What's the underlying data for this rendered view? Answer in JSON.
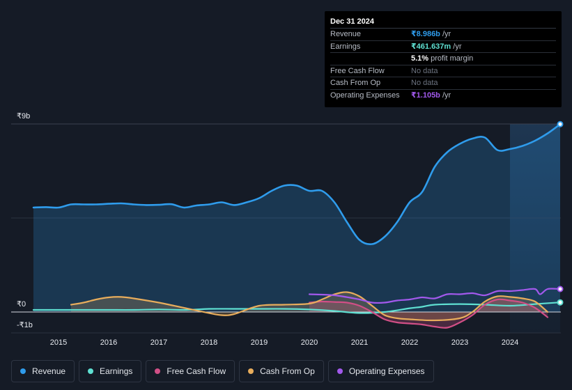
{
  "tooltip": {
    "date": "Dec 31 2024",
    "rows": [
      {
        "label": "Revenue",
        "value": "₹8.986b",
        "unit": " /yr",
        "color": "#2f9cec"
      },
      {
        "label": "Earnings",
        "value": "₹461.637m",
        "unit": " /yr",
        "color": "#5fe0d2"
      },
      {
        "label": "",
        "value": "5.1%",
        "unit": " profit margin",
        "color": "#ffffff"
      },
      {
        "label": "Free Cash Flow",
        "value": "No data",
        "unit": "",
        "color": "#6c7380"
      },
      {
        "label": "Cash From Op",
        "value": "No data",
        "unit": "",
        "color": "#6c7380"
      },
      {
        "label": "Operating Expenses",
        "value": "₹1.105b",
        "unit": " /yr",
        "color": "#a259ec"
      }
    ]
  },
  "colors": {
    "background": "#151b26",
    "revenue": "#2f9cec",
    "earnings": "#5fe0d2",
    "free_cash_flow": "#d14f86",
    "cash_from_op": "#e8ad5c",
    "operating_expenses": "#a259ec",
    "grid": "#3a4150",
    "highlight": "#1b2a3d"
  },
  "chart_data": {
    "type": "line",
    "title": "",
    "y_labels": {
      "top": "₹9b",
      "zero": "₹0",
      "bottom": "-₹1b"
    },
    "ylim": [
      -1,
      9
    ],
    "xlim": [
      2014.5,
      2025.0
    ],
    "x_ticks": [
      "2015",
      "2016",
      "2017",
      "2018",
      "2019",
      "2020",
      "2021",
      "2022",
      "2023",
      "2024"
    ],
    "x_tick_values": [
      2015,
      2016,
      2017,
      2018,
      2019,
      2020,
      2021,
      2022,
      2023,
      2024
    ],
    "forecast_start": 2024.0,
    "series": [
      {
        "name": "Revenue",
        "key": "revenue",
        "fill": true,
        "points": [
          [
            2014.5,
            5.0
          ],
          [
            2014.75,
            5.02
          ],
          [
            2015.0,
            5.0
          ],
          [
            2015.25,
            5.15
          ],
          [
            2015.5,
            5.15
          ],
          [
            2015.75,
            5.15
          ],
          [
            2016.0,
            5.18
          ],
          [
            2016.25,
            5.2
          ],
          [
            2016.5,
            5.15
          ],
          [
            2016.75,
            5.12
          ],
          [
            2017.0,
            5.13
          ],
          [
            2017.25,
            5.16
          ],
          [
            2017.5,
            5.0
          ],
          [
            2017.75,
            5.1
          ],
          [
            2018.0,
            5.15
          ],
          [
            2018.25,
            5.25
          ],
          [
            2018.5,
            5.12
          ],
          [
            2018.75,
            5.25
          ],
          [
            2019.0,
            5.45
          ],
          [
            2019.25,
            5.8
          ],
          [
            2019.5,
            6.05
          ],
          [
            2019.75,
            6.05
          ],
          [
            2020.0,
            5.8
          ],
          [
            2020.25,
            5.8
          ],
          [
            2020.5,
            5.25
          ],
          [
            2020.75,
            4.3
          ],
          [
            2021.0,
            3.45
          ],
          [
            2021.25,
            3.25
          ],
          [
            2021.5,
            3.6
          ],
          [
            2021.75,
            4.3
          ],
          [
            2022.0,
            5.25
          ],
          [
            2022.25,
            5.75
          ],
          [
            2022.5,
            6.95
          ],
          [
            2022.75,
            7.65
          ],
          [
            2023.0,
            8.05
          ],
          [
            2023.25,
            8.3
          ],
          [
            2023.5,
            8.35
          ],
          [
            2023.75,
            7.75
          ],
          [
            2024.0,
            7.8
          ],
          [
            2024.25,
            7.95
          ],
          [
            2024.5,
            8.2
          ],
          [
            2024.75,
            8.55
          ],
          [
            2025.0,
            8.99
          ]
        ]
      },
      {
        "name": "Earnings",
        "key": "earnings",
        "fill": false,
        "points": [
          [
            2014.5,
            0.1
          ],
          [
            2015.0,
            0.1
          ],
          [
            2015.5,
            0.1
          ],
          [
            2016.0,
            0.1
          ],
          [
            2016.5,
            0.1
          ],
          [
            2017.0,
            0.12
          ],
          [
            2017.5,
            0.1
          ],
          [
            2018.0,
            0.15
          ],
          [
            2018.5,
            0.15
          ],
          [
            2019.0,
            0.15
          ],
          [
            2019.5,
            0.15
          ],
          [
            2020.0,
            0.12
          ],
          [
            2020.5,
            0.05
          ],
          [
            2021.0,
            -0.05
          ],
          [
            2021.5,
            0.0
          ],
          [
            2022.0,
            0.18
          ],
          [
            2022.25,
            0.25
          ],
          [
            2022.5,
            0.35
          ],
          [
            2023.0,
            0.38
          ],
          [
            2023.5,
            0.35
          ],
          [
            2024.0,
            0.3
          ],
          [
            2024.5,
            0.38
          ],
          [
            2025.0,
            0.46
          ]
        ]
      },
      {
        "name": "Free Cash Flow",
        "key": "free_cash_flow",
        "fill": true,
        "points": [
          [
            2020.0,
            0.45
          ],
          [
            2020.25,
            0.5
          ],
          [
            2020.5,
            0.48
          ],
          [
            2020.75,
            0.45
          ],
          [
            2021.0,
            0.3
          ],
          [
            2021.25,
            0.0
          ],
          [
            2021.5,
            -0.35
          ],
          [
            2021.75,
            -0.5
          ],
          [
            2022.0,
            -0.55
          ],
          [
            2022.25,
            -0.6
          ],
          [
            2022.5,
            -0.7
          ],
          [
            2022.75,
            -0.75
          ],
          [
            2023.0,
            -0.5
          ],
          [
            2023.25,
            -0.15
          ],
          [
            2023.5,
            0.35
          ],
          [
            2023.75,
            0.6
          ],
          [
            2024.0,
            0.55
          ],
          [
            2024.25,
            0.45
          ],
          [
            2024.5,
            0.2
          ],
          [
            2024.75,
            -0.25
          ]
        ]
      },
      {
        "name": "Cash From Op",
        "key": "cash_from_op",
        "fill": true,
        "points": [
          [
            2015.25,
            0.35
          ],
          [
            2015.5,
            0.45
          ],
          [
            2015.75,
            0.6
          ],
          [
            2016.0,
            0.7
          ],
          [
            2016.25,
            0.72
          ],
          [
            2016.5,
            0.65
          ],
          [
            2017.0,
            0.45
          ],
          [
            2017.5,
            0.2
          ],
          [
            2018.0,
            -0.05
          ],
          [
            2018.25,
            -0.15
          ],
          [
            2018.5,
            -0.1
          ],
          [
            2019.0,
            0.3
          ],
          [
            2019.5,
            0.35
          ],
          [
            2020.0,
            0.4
          ],
          [
            2020.25,
            0.6
          ],
          [
            2020.5,
            0.85
          ],
          [
            2020.75,
            0.95
          ],
          [
            2021.0,
            0.75
          ],
          [
            2021.25,
            0.3
          ],
          [
            2021.5,
            -0.15
          ],
          [
            2021.75,
            -0.3
          ],
          [
            2022.0,
            -0.35
          ],
          [
            2022.5,
            -0.4
          ],
          [
            2023.0,
            -0.3
          ],
          [
            2023.25,
            0.0
          ],
          [
            2023.5,
            0.5
          ],
          [
            2023.75,
            0.75
          ],
          [
            2024.0,
            0.72
          ],
          [
            2024.25,
            0.65
          ],
          [
            2024.5,
            0.5
          ],
          [
            2024.75,
            0.0
          ]
        ]
      },
      {
        "name": "Operating Expenses",
        "key": "operating_expenses",
        "fill": false,
        "points": [
          [
            2020.0,
            0.85
          ],
          [
            2020.5,
            0.8
          ],
          [
            2021.0,
            0.6
          ],
          [
            2021.25,
            0.45
          ],
          [
            2021.5,
            0.45
          ],
          [
            2021.75,
            0.55
          ],
          [
            2022.0,
            0.6
          ],
          [
            2022.25,
            0.7
          ],
          [
            2022.5,
            0.65
          ],
          [
            2022.75,
            0.85
          ],
          [
            2023.0,
            0.85
          ],
          [
            2023.25,
            0.9
          ],
          [
            2023.5,
            0.8
          ],
          [
            2023.75,
            1.0
          ],
          [
            2024.0,
            1.0
          ],
          [
            2024.25,
            1.05
          ],
          [
            2024.5,
            1.1
          ],
          [
            2024.6,
            0.85
          ],
          [
            2024.75,
            1.1
          ],
          [
            2025.0,
            1.1
          ]
        ]
      }
    ]
  },
  "legend": [
    {
      "label": "Revenue",
      "color": "#2f9cec"
    },
    {
      "label": "Earnings",
      "color": "#5fe0d2"
    },
    {
      "label": "Free Cash Flow",
      "color": "#d14f86"
    },
    {
      "label": "Cash From Op",
      "color": "#e8ad5c"
    },
    {
      "label": "Operating Expenses",
      "color": "#a259ec"
    }
  ]
}
